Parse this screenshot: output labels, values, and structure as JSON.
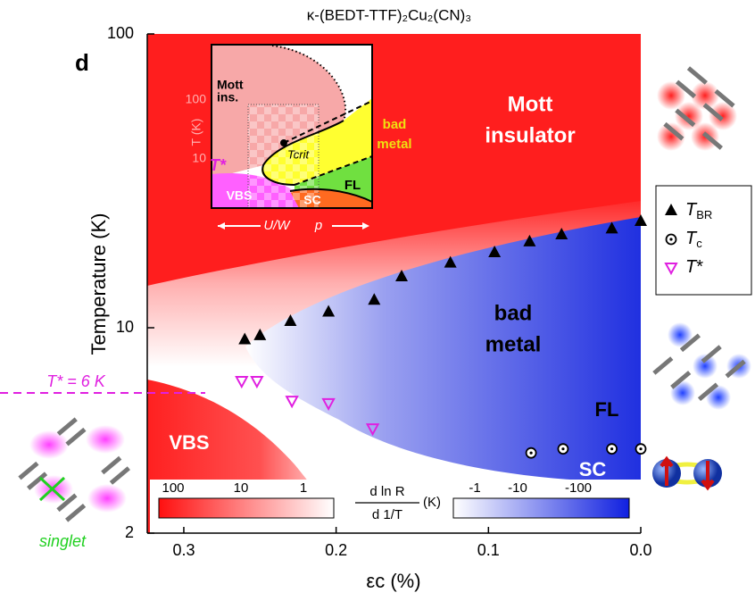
{
  "chart_data": {
    "type": "scatter",
    "title": "κ-(BEDT-TTF)₂Cu₂(CN)₃",
    "xlabel": "εc (%)",
    "ylabel": "Temperature (K)",
    "xlim": [
      0.324,
      0.0
    ],
    "xticks": [
      0.3,
      0.2,
      0.1,
      {
        "value": 0,
        "label": "0.0"
      }
    ],
    "ylim": [
      2,
      100
    ],
    "yticks": [
      2,
      10,
      100
    ],
    "log_y": true,
    "series": [
      {
        "name": "TBR",
        "color": "#000000",
        "marker": "triangle",
        "x": [
          0.26,
          0.25,
          0.23,
          0.205,
          0.175,
          0.157,
          0.125,
          0.096,
          0.073,
          0.052,
          0.019,
          0.0
        ],
        "values": [
          9.1,
          9.4,
          10.5,
          11.3,
          12.4,
          14.9,
          16.6,
          18.0,
          19.6,
          20.7,
          21.7,
          23.0
        ]
      },
      {
        "name": "Tc",
        "color": "#000000",
        "marker": "circle",
        "x": [
          0.072,
          0.051,
          0.019,
          0.0
        ],
        "values": [
          3.75,
          3.87,
          3.87,
          3.87
        ]
      },
      {
        "name": "T*",
        "color": "#e020e0",
        "marker": "triangle-down",
        "x": [
          0.262,
          0.252,
          0.229,
          0.205,
          0.176
        ],
        "values": [
          6.57,
          6.57,
          5.63,
          5.52,
          4.53
        ]
      }
    ],
    "tstar_line": 6,
    "annotations": [
      "d",
      "Mott",
      "insulator",
      "bad",
      "metal",
      "FL",
      "SC",
      "VBS",
      "T* = 6 K",
      "singlet",
      "Mott",
      "ins.",
      "T (K)",
      "100",
      "10",
      "bad",
      "metal",
      "Tcrit",
      "FL",
      "VBS",
      "SC",
      "U/W",
      "p",
      "T*"
    ],
    "colorbar": {
      "red_ticks": [
        "100",
        "10",
        "1"
      ],
      "blue_ticks": [
        "-1",
        "-10",
        "-100"
      ],
      "numerator": "d ln R",
      "denominator": "d 1/T",
      "unit": "(K)"
    }
  }
}
